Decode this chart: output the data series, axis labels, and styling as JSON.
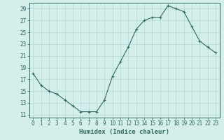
{
  "x": [
    0,
    1,
    2,
    3,
    4,
    5,
    6,
    7,
    8,
    9,
    10,
    11,
    12,
    13,
    14,
    15,
    16,
    17,
    18,
    19,
    20,
    21,
    22,
    23
  ],
  "y": [
    18,
    16,
    15,
    14.5,
    13.5,
    12.5,
    11.5,
    11.5,
    11.5,
    13.5,
    17.5,
    20,
    22.5,
    25.5,
    27,
    27.5,
    27.5,
    29.5,
    29,
    28.5,
    26,
    23.5,
    22.5,
    21.5
  ],
  "line_color": "#2e6b5e",
  "marker": "+",
  "bg_color": "#d4eeeb",
  "grid_color": "#b0d8d2",
  "tick_color": "#2e6b5e",
  "xlabel": "Humidex (Indice chaleur)",
  "xlim": [
    -0.5,
    23.5
  ],
  "ylim": [
    10.5,
    30
  ],
  "yticks": [
    11,
    13,
    15,
    17,
    19,
    21,
    23,
    25,
    27,
    29
  ],
  "xticks": [
    0,
    1,
    2,
    3,
    4,
    5,
    6,
    7,
    8,
    9,
    10,
    11,
    12,
    13,
    14,
    15,
    16,
    17,
    18,
    19,
    20,
    21,
    22,
    23
  ],
  "label_fontsize": 6.5,
  "tick_fontsize": 5.5
}
